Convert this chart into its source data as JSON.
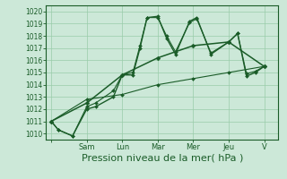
{
  "bg_color": "#cce8d8",
  "grid_color": "#99ccaa",
  "line_color": "#1a5c28",
  "xlabel": "Pression niveau de la mer( hPa )",
  "xlabel_fontsize": 8,
  "ylim": [
    1009.5,
    1020.5
  ],
  "yticks": [
    1010,
    1011,
    1012,
    1013,
    1014,
    1015,
    1016,
    1017,
    1018,
    1019,
    1020
  ],
  "xtick_labels": [
    "",
    "Sam",
    "Lun",
    "Mar",
    "Mer",
    "Jeu",
    "V"
  ],
  "xtick_positions": [
    0,
    2,
    4,
    6,
    8,
    10,
    12
  ],
  "xlim": [
    -0.3,
    12.8
  ],
  "series": [
    {
      "x": [
        0,
        0.4,
        1.2,
        2.0,
        2.5,
        3.5,
        4.0,
        4.6,
        5.0,
        5.4,
        6.0,
        6.5,
        7.0,
        7.8,
        8.2,
        9.0,
        10.0,
        10.5,
        11.0,
        11.5,
        12.0
      ],
      "y": [
        1011.0,
        1010.3,
        1009.8,
        1012.0,
        1012.2,
        1013.0,
        1014.8,
        1014.8,
        1017.0,
        1019.5,
        1019.6,
        1017.8,
        1016.5,
        1019.2,
        1019.5,
        1016.5,
        1017.5,
        1018.2,
        1014.7,
        1015.0,
        1015.5
      ],
      "marker": "D",
      "markersize": 2.0,
      "linewidth": 1.0
    },
    {
      "x": [
        0,
        0.4,
        1.2,
        2.0,
        2.5,
        3.5,
        4.0,
        4.6,
        5.0,
        5.4,
        6.0,
        6.5,
        7.0,
        7.8,
        8.2,
        9.0,
        10.0,
        10.5,
        11.0,
        11.5,
        12.0
      ],
      "y": [
        1011.0,
        1010.3,
        1009.8,
        1012.2,
        1012.5,
        1013.5,
        1014.8,
        1015.0,
        1017.2,
        1019.5,
        1019.5,
        1018.0,
        1016.7,
        1019.1,
        1019.4,
        1016.6,
        1017.5,
        1018.2,
        1014.9,
        1015.1,
        1015.5
      ],
      "marker": "D",
      "markersize": 2.0,
      "linewidth": 0.8
    },
    {
      "x": [
        0,
        2,
        4,
        6,
        8,
        10,
        12
      ],
      "y": [
        1011.0,
        1012.5,
        1014.8,
        1016.2,
        1017.2,
        1017.5,
        1015.5
      ],
      "marker": "D",
      "markersize": 2.5,
      "linewidth": 1.1
    },
    {
      "x": [
        0,
        2,
        4,
        6,
        8,
        10,
        12
      ],
      "y": [
        1011.0,
        1012.8,
        1013.2,
        1014.0,
        1014.5,
        1015.0,
        1015.5
      ],
      "marker": "D",
      "markersize": 2.0,
      "linewidth": 0.8
    }
  ]
}
